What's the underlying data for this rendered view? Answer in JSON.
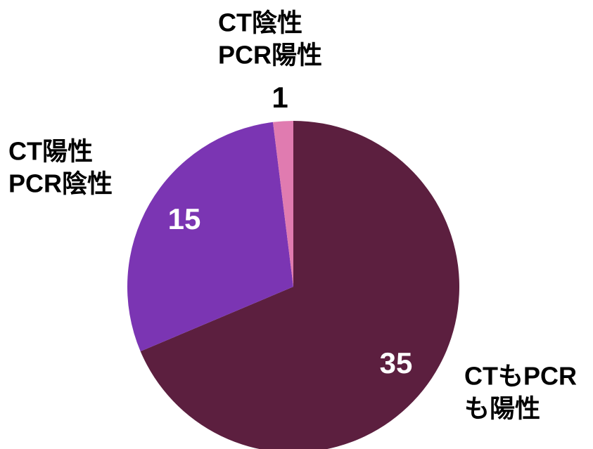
{
  "chart_data": {
    "type": "pie",
    "categories": [
      [
        "CTもPCR",
        "も陽性"
      ],
      [
        "CT陽性",
        "PCR陰性"
      ],
      [
        "CT陰性",
        "PCR陽性"
      ]
    ],
    "values": [
      35,
      15,
      1
    ],
    "colors": [
      "#5c1f3f",
      "#7b35b3",
      "#e07bb0"
    ]
  }
}
